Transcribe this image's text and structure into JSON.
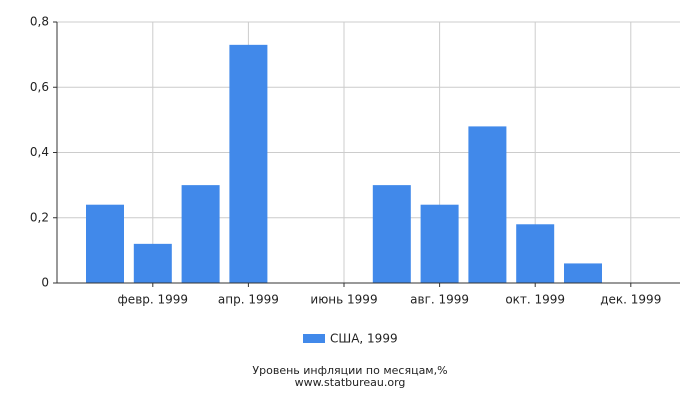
{
  "chart_data": {
    "type": "bar",
    "categories": [
      null,
      "февр. 1999",
      null,
      "апр. 1999",
      null,
      "июнь 1999",
      null,
      "авг. 1999",
      null,
      "окт. 1999",
      null,
      "дек. 1999"
    ],
    "series": [
      {
        "name": "США, 1999",
        "color": "#4189ea",
        "values": [
          0.24,
          0.12,
          0.3,
          0.73,
          0,
          0,
          0.3,
          0.24,
          0.48,
          0.18,
          0.06,
          0
        ]
      }
    ],
    "ylim": [
      0,
      0.8
    ],
    "yticks": [
      0,
      {
        "value": 0.2,
        "label": "0,2"
      },
      {
        "value": 0.4,
        "label": "0,4"
      },
      {
        "value": 0.6,
        "label": "0,6"
      },
      {
        "value": 0.8,
        "label": "0,8"
      }
    ],
    "grid": true,
    "legend": "bottom",
    "footer": [
      "Уровень инфляции по месяцам,%",
      "www.statbureau.org"
    ]
  }
}
